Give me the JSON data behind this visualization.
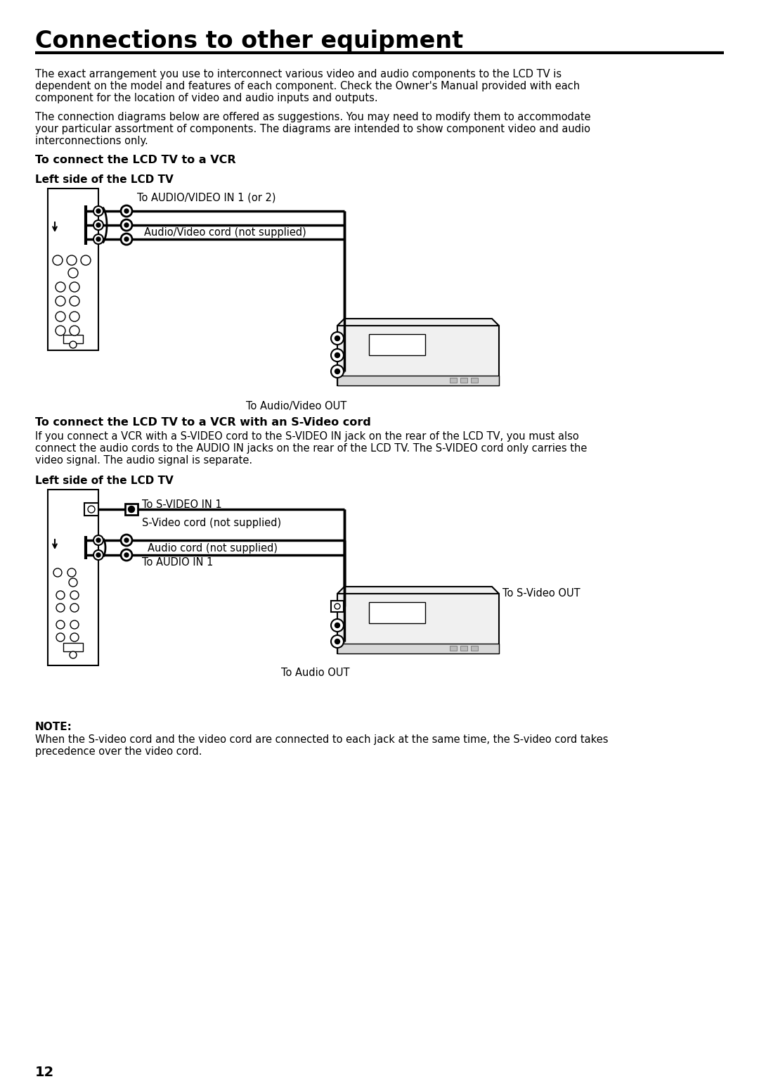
{
  "title": "Connections to other equipment",
  "para1_lines": [
    "The exact arrangement you use to interconnect various video and audio components to the LCD TV is",
    "dependent on the model and features of each component. Check the Owner's Manual provided with each",
    "component for the location of video and audio inputs and outputs."
  ],
  "para2_lines": [
    "The connection diagrams below are offered as suggestions. You may need to modify them to accommodate",
    "your particular assortment of components. The diagrams are intended to show component video and audio",
    "interconnections only."
  ],
  "sec1_title": "To connect the LCD TV to a VCR",
  "sec1_sub": "Left side of the LCD TV",
  "d1_lbl1": "To AUDIO/VIDEO IN 1 (or 2)",
  "d1_lbl2": "Audio/Video cord (not supplied)",
  "d1_lbl3": "To Audio/Video OUT",
  "sec2_title": "To connect the LCD TV to a VCR with an S-Video cord",
  "sec2_lines": [
    "If you connect a VCR with a S-VIDEO cord to the S-VIDEO IN jack on the rear of the LCD TV, you must also",
    "connect the audio cords to the AUDIO IN jacks on the rear of the LCD TV. The S-VIDEO cord only carries the",
    "video signal. The audio signal is separate."
  ],
  "sec2_sub": "Left side of the LCD TV",
  "d2_lbl1": "To S-VIDEO IN 1",
  "d2_lbl2": "S-Video cord (not supplied)",
  "d2_lbl3": "Audio cord (not supplied)",
  "d2_lbl4": "To AUDIO IN 1",
  "d2_lbl5": "To S-Video OUT",
  "d2_lbl6": "To Audio OUT",
  "note_title": "NOTE:",
  "note_lines": [
    "When the S-video cord and the video cord are connected to each jack at the same time, the S-video cord takes",
    "precedence over the video cord."
  ],
  "page_num": "12"
}
